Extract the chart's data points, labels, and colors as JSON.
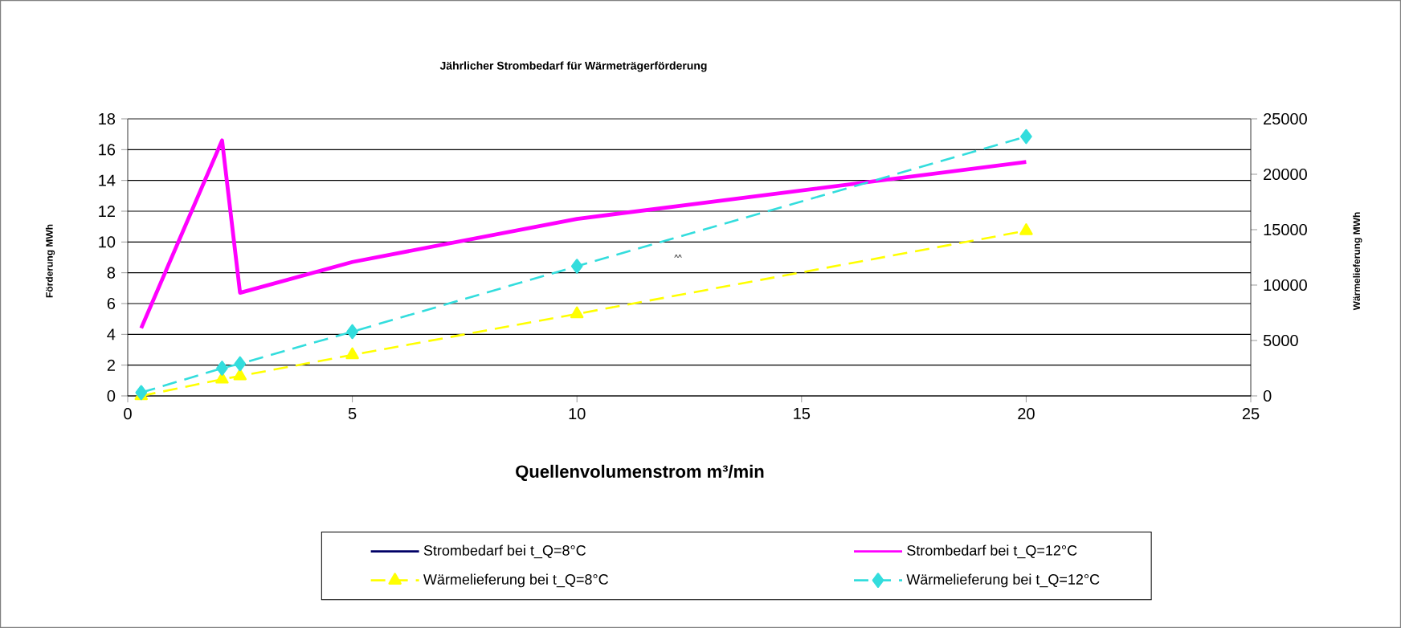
{
  "chart_data": {
    "type": "line",
    "title": "Jährlicher Strombedarf für Wärmeträgerförderung",
    "xlabel": "Quellenvolumenstrom m³/min",
    "ylabel": "Förderung MWh",
    "y2label": "Wärmelieferung MWh",
    "x": [
      0.3,
      2.1,
      2.5,
      5,
      10,
      20
    ],
    "series": [
      {
        "name": "Strombedarf bei t_Q=8°C",
        "color": "#000066",
        "values": [
          null,
          null,
          null,
          null,
          null,
          null
        ],
        "marker": "none",
        "line_style": "solid"
      },
      {
        "name": "Strombedarf bei t_Q=12°C",
        "color": "#ff00ff",
        "values": [
          4.4,
          16.6,
          6.7,
          8.7,
          11.5,
          15.2
        ],
        "marker": "none",
        "line_style": "solid"
      },
      {
        "name": "Wärmelieferung bei t_Q=8°C",
        "color": "#ffff00",
        "values": [
          0,
          1500,
          1800,
          3700,
          7400,
          14900
        ],
        "axis": "y2",
        "marker": "triangle",
        "line_style": "dashed"
      },
      {
        "name": "Wärmelieferung bei t_Q=12°C",
        "color": "#33dddd",
        "values": [
          300,
          2500,
          2900,
          5800,
          11700,
          23400
        ],
        "axis": "y2",
        "marker": "diamond",
        "line_style": "dashed"
      }
    ],
    "xlim": [
      0,
      25
    ],
    "xticks": [
      0,
      5,
      10,
      15,
      20,
      25
    ],
    "ylim": [
      0,
      18
    ],
    "yticks": [
      0,
      2,
      4,
      6,
      8,
      10,
      12,
      14,
      16,
      18
    ],
    "y2lim": [
      0,
      25000
    ],
    "y2ticks": [
      0,
      5000,
      10000,
      15000,
      20000,
      25000
    ],
    "grid": "y",
    "legend": "bottom",
    "annotations": [
      "^^"
    ]
  }
}
